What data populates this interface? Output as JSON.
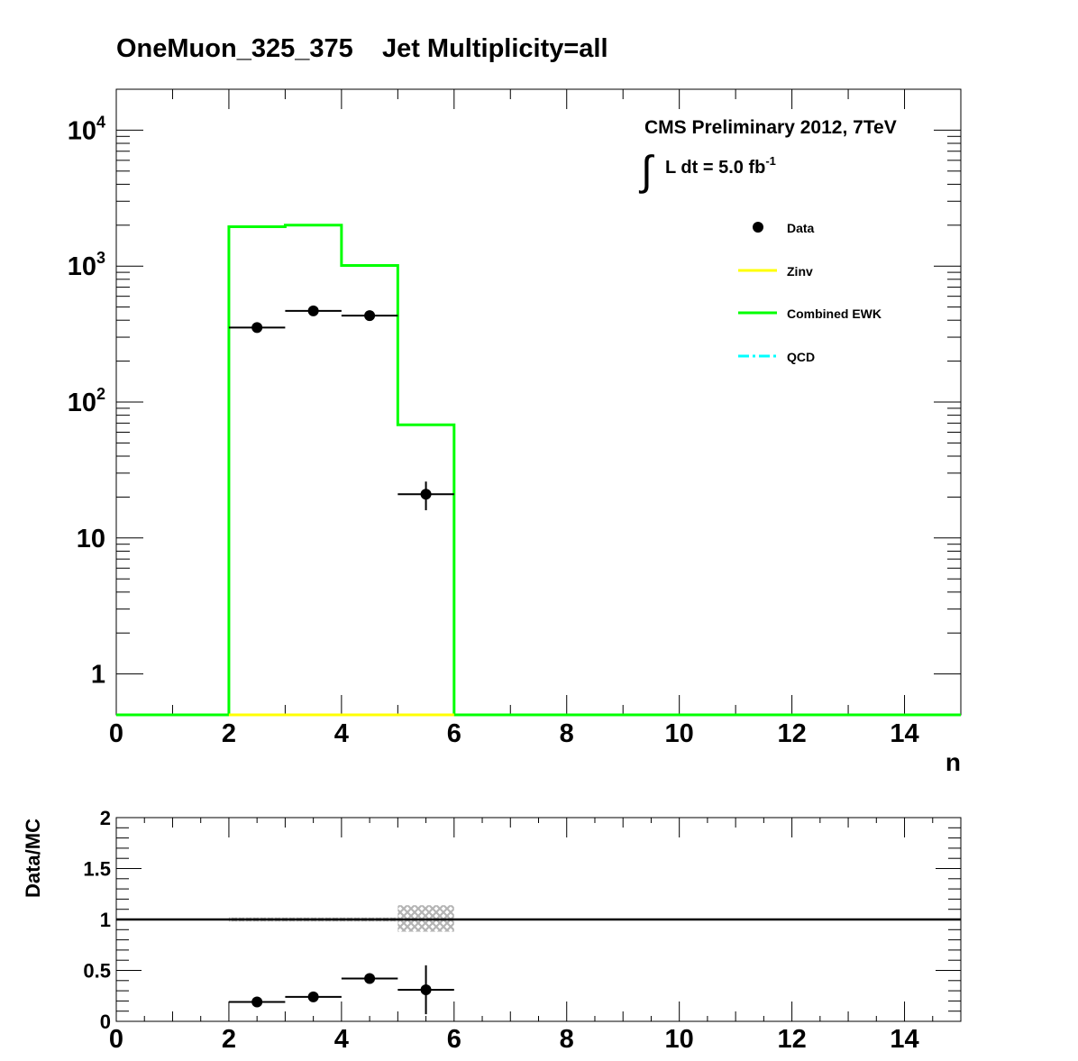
{
  "title": "OneMuon_325_375    Jet Multiplicity=all",
  "chart_data": [
    {
      "type": "histogram",
      "panel": "main",
      "yscale": "log",
      "xlim": [
        0,
        15
      ],
      "ylim": [
        0.5,
        20000
      ],
      "xlabel": "n",
      "ylabel": "",
      "xticks": [
        "0",
        "2",
        "4",
        "6",
        "8",
        "10",
        "12",
        "14"
      ],
      "yticks": [
        {
          "value": 1,
          "label": "1",
          "sup": ""
        },
        {
          "value": 10,
          "label": "10",
          "sup": ""
        },
        {
          "value": 100,
          "label": "10",
          "sup": "2"
        },
        {
          "value": 1000,
          "label": "10",
          "sup": "3"
        },
        {
          "value": 10000,
          "label": "10",
          "sup": "4"
        }
      ],
      "annotations": {
        "experiment": "CMS Preliminary 2012, 7TeV",
        "lumi_integral": "∫",
        "lumi_text": "L dt = 5.0 fb",
        "lumi_sup": "-1"
      },
      "legend": {
        "position": "top-right",
        "entries": [
          {
            "label": "Data",
            "style": "marker",
            "color": "#000000"
          },
          {
            "label": "Zinv",
            "style": "line",
            "color": "#ffff00"
          },
          {
            "label": "Combined EWK",
            "style": "line",
            "color": "#00ff00"
          },
          {
            "label": "QCD",
            "style": "dashdot",
            "color": "#00ffff"
          }
        ]
      },
      "series": [
        {
          "name": "Combined EWK",
          "color": "#00ff00",
          "bins": [
            {
              "x0": 0,
              "x1": 2,
              "y": 0
            },
            {
              "x0": 2,
              "x1": 3,
              "y": 1950
            },
            {
              "x0": 3,
              "x1": 4,
              "y": 2000
            },
            {
              "x0": 4,
              "x1": 5,
              "y": 1010
            },
            {
              "x0": 5,
              "x1": 6,
              "y": 68
            },
            {
              "x0": 6,
              "x1": 15,
              "y": 0
            }
          ]
        },
        {
          "name": "Zinv",
          "color": "#ffff00",
          "bins": [
            {
              "x0": 2,
              "x1": 6,
              "y": 0
            }
          ]
        },
        {
          "name": "Data",
          "color": "#000000",
          "points": [
            {
              "x": 2.5,
              "y": 353,
              "ylo": 334,
              "yhi": 372
            },
            {
              "x": 3.5,
              "y": 468,
              "ylo": 446,
              "yhi": 490
            },
            {
              "x": 4.5,
              "y": 432,
              "ylo": 411,
              "yhi": 453
            },
            {
              "x": 5.5,
              "y": 21,
              "ylo": 16,
              "yhi": 26
            }
          ]
        }
      ]
    },
    {
      "type": "scatter",
      "panel": "ratio",
      "xlim": [
        0,
        15
      ],
      "ylim": [
        0,
        2
      ],
      "ylabel": "Data/MC",
      "xticks": [
        "0",
        "2",
        "4",
        "6",
        "8",
        "10",
        "12",
        "14"
      ],
      "yticks": [
        "0",
        "0.5",
        "1",
        "1.5",
        "2"
      ],
      "reference_line": 1,
      "uncertainty_band": [
        {
          "x0": 2,
          "x1": 5,
          "ylo": 0.98,
          "yhi": 1.02
        },
        {
          "x0": 5,
          "x1": 6,
          "ylo": 0.88,
          "yhi": 1.14
        }
      ],
      "points": [
        {
          "x": 2.5,
          "y": 0.19,
          "err": 0.02
        },
        {
          "x": 3.5,
          "y": 0.24,
          "err": 0.02
        },
        {
          "x": 4.5,
          "y": 0.42,
          "err": 0.03
        },
        {
          "x": 5.5,
          "y": 0.31,
          "err": 0.24
        }
      ]
    }
  ]
}
